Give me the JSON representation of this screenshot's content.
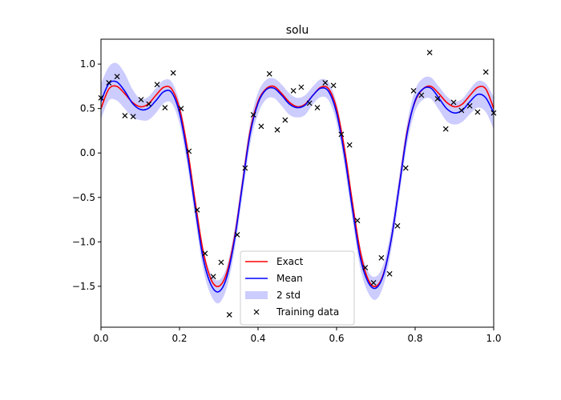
{
  "chart_data": {
    "type": "line",
    "title": "solu",
    "xlabel": "",
    "ylabel": "",
    "xlim": [
      0.0,
      1.0
    ],
    "ylim": [
      -1.96,
      1.28
    ],
    "x_ticks": [
      0.0,
      0.2,
      0.4,
      0.6,
      0.8,
      1.0
    ],
    "x_tick_labels": [
      "0.0",
      "0.2",
      "0.4",
      "0.6",
      "0.8",
      "1.0"
    ],
    "y_ticks": [
      -1.5,
      -1.0,
      -0.5,
      0.0,
      0.5,
      1.0
    ],
    "y_tick_labels": [
      "−1.5",
      "−1.0",
      "−0.5",
      "0.0",
      "0.5",
      "1.0"
    ],
    "grid": false,
    "legend_position": "bottom-center",
    "legend": [
      {
        "label": "Exact",
        "kind": "line",
        "color": "#ff0000"
      },
      {
        "label": "Mean",
        "kind": "line",
        "color": "#0000ff"
      },
      {
        "label": "2 std",
        "kind": "band",
        "color": "#ccccff"
      },
      {
        "label": "Training data",
        "kind": "marker",
        "color": "#000000"
      }
    ],
    "series": [
      {
        "name": "Exact",
        "color": "#ff0000",
        "x": [
          0.0,
          0.02,
          0.04,
          0.06,
          0.08,
          0.1,
          0.12,
          0.14,
          0.16,
          0.18,
          0.2,
          0.22,
          0.24,
          0.26,
          0.28,
          0.3,
          0.32,
          0.34,
          0.36,
          0.38,
          0.4,
          0.42,
          0.44,
          0.46,
          0.48,
          0.5,
          0.52,
          0.54,
          0.56,
          0.58,
          0.6,
          0.62,
          0.64,
          0.66,
          0.68,
          0.7,
          0.72,
          0.74,
          0.76,
          0.78,
          0.8,
          0.82,
          0.84,
          0.86,
          0.88,
          0.9,
          0.92,
          0.94,
          0.96,
          0.98,
          1.0
        ],
        "y": [
          0.5,
          0.72,
          0.75,
          0.67,
          0.57,
          0.52,
          0.55,
          0.65,
          0.74,
          0.72,
          0.5,
          0.05,
          -0.55,
          -1.1,
          -1.42,
          -1.5,
          -1.35,
          -0.95,
          -0.35,
          0.25,
          0.58,
          0.72,
          0.75,
          0.67,
          0.57,
          0.52,
          0.55,
          0.65,
          0.74,
          0.72,
          0.5,
          0.05,
          -0.55,
          -1.1,
          -1.42,
          -1.5,
          -1.35,
          -0.95,
          -0.35,
          0.25,
          0.58,
          0.72,
          0.75,
          0.67,
          0.57,
          0.52,
          0.55,
          0.65,
          0.74,
          0.72,
          0.5
        ]
      },
      {
        "name": "Mean",
        "color": "#0000ff",
        "x": [
          0.0,
          0.02,
          0.04,
          0.06,
          0.08,
          0.1,
          0.12,
          0.14,
          0.16,
          0.18,
          0.2,
          0.22,
          0.24,
          0.26,
          0.28,
          0.3,
          0.32,
          0.34,
          0.36,
          0.38,
          0.4,
          0.42,
          0.44,
          0.46,
          0.48,
          0.5,
          0.52,
          0.54,
          0.56,
          0.58,
          0.6,
          0.62,
          0.64,
          0.66,
          0.68,
          0.7,
          0.72,
          0.74,
          0.76,
          0.78,
          0.8,
          0.82,
          0.84,
          0.86,
          0.88,
          0.9,
          0.92,
          0.94,
          0.96,
          0.98,
          1.0
        ],
        "y": [
          0.58,
          0.78,
          0.8,
          0.7,
          0.56,
          0.49,
          0.5,
          0.59,
          0.69,
          0.68,
          0.45,
          -0.02,
          -0.62,
          -1.18,
          -1.48,
          -1.56,
          -1.4,
          -0.98,
          -0.37,
          0.22,
          0.56,
          0.71,
          0.73,
          0.65,
          0.55,
          0.51,
          0.54,
          0.65,
          0.73,
          0.69,
          0.45,
          -0.02,
          -0.62,
          -1.17,
          -1.45,
          -1.52,
          -1.36,
          -0.95,
          -0.36,
          0.23,
          0.59,
          0.72,
          0.73,
          0.62,
          0.5,
          0.45,
          0.48,
          0.58,
          0.66,
          0.62,
          0.45
        ]
      }
    ],
    "band": {
      "name": "2 std",
      "color": "#ccccff",
      "x": [
        0.0,
        0.02,
        0.04,
        0.06,
        0.08,
        0.1,
        0.12,
        0.14,
        0.16,
        0.18,
        0.2,
        0.22,
        0.24,
        0.26,
        0.28,
        0.3,
        0.32,
        0.34,
        0.36,
        0.38,
        0.4,
        0.42,
        0.44,
        0.46,
        0.48,
        0.5,
        0.52,
        0.54,
        0.56,
        0.58,
        0.6,
        0.62,
        0.64,
        0.66,
        0.68,
        0.7,
        0.72,
        0.74,
        0.76,
        0.78,
        0.8,
        0.82,
        0.84,
        0.86,
        0.88,
        0.9,
        0.92,
        0.94,
        0.96,
        0.98,
        1.0
      ],
      "half_width": [
        0.2,
        0.19,
        0.21,
        0.2,
        0.16,
        0.12,
        0.13,
        0.14,
        0.13,
        0.12,
        0.12,
        0.12,
        0.12,
        0.12,
        0.12,
        0.13,
        0.12,
        0.12,
        0.12,
        0.12,
        0.12,
        0.11,
        0.11,
        0.12,
        0.12,
        0.11,
        0.11,
        0.1,
        0.1,
        0.1,
        0.11,
        0.12,
        0.12,
        0.12,
        0.12,
        0.13,
        0.12,
        0.12,
        0.12,
        0.12,
        0.12,
        0.12,
        0.12,
        0.13,
        0.14,
        0.13,
        0.13,
        0.14,
        0.15,
        0.16,
        0.18
      ]
    },
    "training_data": {
      "name": "Training data",
      "x": [
        0.0,
        0.02,
        0.041,
        0.061,
        0.082,
        0.102,
        0.122,
        0.143,
        0.163,
        0.184,
        0.204,
        0.224,
        0.245,
        0.265,
        0.286,
        0.306,
        0.327,
        0.347,
        0.367,
        0.388,
        0.408,
        0.429,
        0.449,
        0.469,
        0.49,
        0.51,
        0.531,
        0.551,
        0.571,
        0.592,
        0.612,
        0.633,
        0.653,
        0.673,
        0.694,
        0.714,
        0.735,
        0.755,
        0.776,
        0.796,
        0.816,
        0.837,
        0.857,
        0.878,
        0.898,
        0.918,
        0.939,
        0.959,
        0.98,
        1.0
      ],
      "y": [
        0.62,
        0.79,
        0.86,
        0.42,
        0.41,
        0.6,
        0.55,
        0.77,
        0.51,
        0.9,
        0.5,
        0.02,
        -0.64,
        -1.13,
        -1.39,
        -1.23,
        -1.82,
        -0.92,
        -0.17,
        0.43,
        0.3,
        0.89,
        0.26,
        0.37,
        0.7,
        0.74,
        0.56,
        0.51,
        0.79,
        0.76,
        0.21,
        0.09,
        -0.76,
        -1.29,
        -1.46,
        -1.18,
        -1.36,
        -0.82,
        -0.17,
        0.7,
        0.65,
        1.13,
        0.61,
        0.27,
        0.57,
        0.48,
        0.53,
        0.46,
        0.91,
        0.45
      ]
    }
  }
}
